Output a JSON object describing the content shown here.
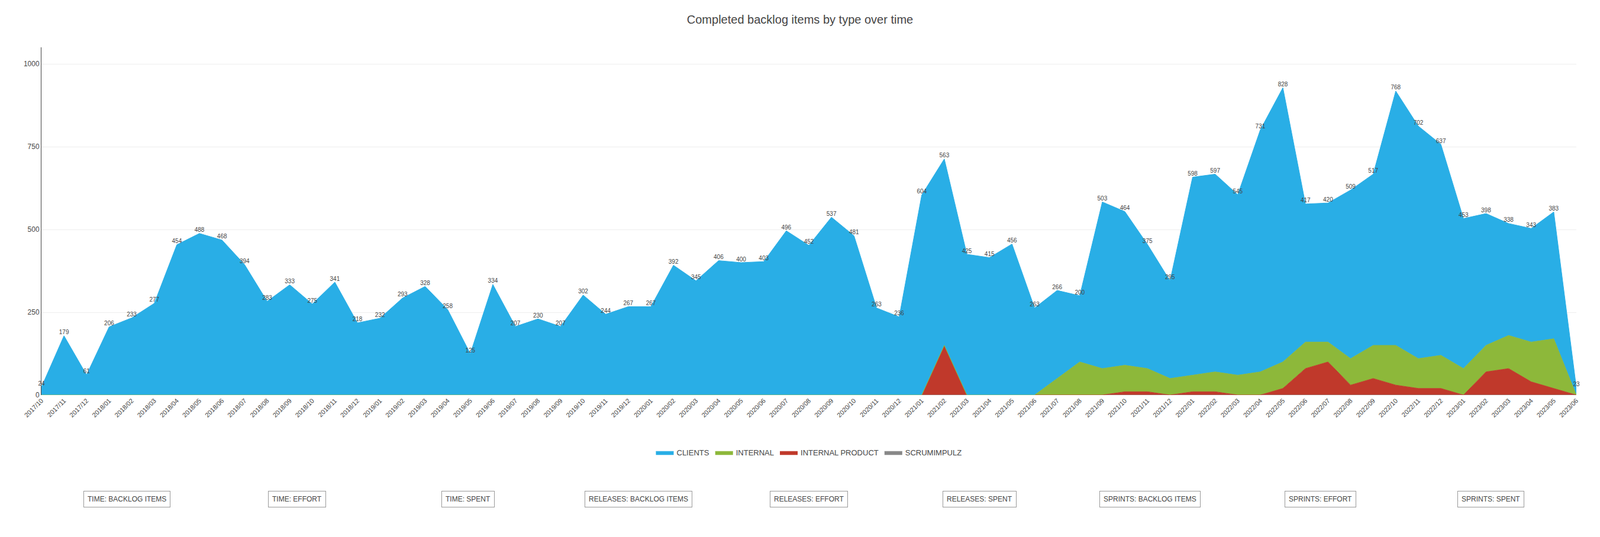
{
  "chart_data": {
    "type": "area",
    "title": "Completed backlog items by type over time",
    "stacked": true,
    "grid": true,
    "legend": "bottom",
    "ylim": [
      0,
      1050
    ],
    "yticks": [
      0,
      250,
      500,
      750,
      1000
    ],
    "categories": [
      "2017/10",
      "2017/11",
      "2017/12",
      "2018/01",
      "2018/02",
      "2018/03",
      "2018/04",
      "2018/05",
      "2018/06",
      "2018/07",
      "2018/08",
      "2018/09",
      "2018/10",
      "2018/11",
      "2018/12",
      "2019/01",
      "2019/02",
      "2019/03",
      "2019/04",
      "2019/05",
      "2019/06",
      "2019/07",
      "2019/08",
      "2019/09",
      "2019/10",
      "2019/11",
      "2019/12",
      "2020/01",
      "2020/02",
      "2020/03",
      "2020/04",
      "2020/05",
      "2020/06",
      "2020/07",
      "2020/08",
      "2020/09",
      "2020/10",
      "2020/11",
      "2020/12",
      "2021/01",
      "2021/02",
      "2021/03",
      "2021/04",
      "2021/05",
      "2021/06",
      "2021/07",
      "2021/08",
      "2021/09",
      "2021/10",
      "2021/11",
      "2021/12",
      "2022/01",
      "2022/02",
      "2022/03",
      "2022/04",
      "2022/05",
      "2022/06",
      "2022/07",
      "2022/08",
      "2022/09",
      "2022/10",
      "2022/11",
      "2022/12",
      "2023/01",
      "2023/02",
      "2023/03",
      "2023/04",
      "2023/05",
      "2023/06"
    ],
    "series": [
      {
        "name": "CLIENTS",
        "color": "#29aee6",
        "data_labels": true,
        "values": [
          24,
          179,
          61,
          206,
          233,
          277,
          454,
          488,
          468,
          394,
          283,
          333,
          275,
          341,
          218,
          232,
          293,
          328,
          258,
          125,
          334,
          207,
          230,
          207,
          302,
          244,
          267,
          267,
          392,
          345,
          406,
          400,
          403,
          496,
          452,
          537,
          481,
          263,
          236,
          604,
          563,
          425,
          415,
          456,
          263,
          266,
          200,
          503,
          464,
          375,
          295,
          598,
          597,
          545,
          731,
          828,
          417,
          420,
          509,
          517,
          768,
          702,
          637,
          453,
          398,
          338,
          343,
          383,
          23
        ]
      },
      {
        "name": "INTERNAL",
        "color": "#8db83a",
        "values": [
          0,
          0,
          0,
          0,
          0,
          0,
          0,
          0,
          0,
          0,
          0,
          0,
          0,
          0,
          0,
          0,
          0,
          0,
          0,
          0,
          0,
          0,
          0,
          0,
          0,
          0,
          0,
          0,
          0,
          0,
          0,
          0,
          0,
          0,
          0,
          0,
          0,
          0,
          0,
          0,
          0,
          0,
          0,
          0,
          0,
          50,
          100,
          80,
          80,
          70,
          50,
          50,
          60,
          60,
          70,
          80,
          80,
          60,
          80,
          100,
          120,
          90,
          100,
          80,
          80,
          100,
          120,
          150,
          0
        ]
      },
      {
        "name": "INTERNAL PRODUCT",
        "color": "#c0392b",
        "values": [
          0,
          0,
          0,
          0,
          0,
          0,
          0,
          0,
          0,
          0,
          0,
          0,
          0,
          0,
          0,
          0,
          0,
          0,
          0,
          0,
          0,
          0,
          0,
          0,
          0,
          0,
          0,
          0,
          0,
          0,
          0,
          0,
          0,
          0,
          0,
          0,
          0,
          0,
          0,
          0,
          150,
          0,
          0,
          0,
          0,
          0,
          0,
          0,
          10,
          10,
          0,
          10,
          10,
          0,
          0,
          20,
          80,
          100,
          30,
          50,
          30,
          20,
          20,
          0,
          70,
          80,
          40,
          20,
          0
        ]
      },
      {
        "name": "SCRUMIMPULZ",
        "color": "#888888",
        "values": [
          0,
          0,
          0,
          0,
          0,
          0,
          0,
          0,
          0,
          0,
          0,
          0,
          0,
          0,
          0,
          0,
          0,
          0,
          0,
          0,
          0,
          0,
          0,
          0,
          0,
          0,
          0,
          0,
          0,
          0,
          0,
          0,
          0,
          0,
          0,
          0,
          0,
          0,
          0,
          0,
          0,
          0,
          0,
          0,
          0,
          0,
          0,
          0,
          0,
          0,
          0,
          0,
          0,
          0,
          0,
          0,
          0,
          0,
          0,
          0,
          0,
          0,
          0,
          0,
          0,
          0,
          0,
          0,
          0
        ]
      }
    ],
    "annotations": [
      "TIME: BACKLOG ITEMS",
      "TIME: EFFORT",
      "TIME: SPENT",
      "RELEASES: BACKLOG ITEMS",
      "RELEASES: EFFORT",
      "RELEASES: SPENT",
      "SPRINTS: BACKLOG ITEMS",
      "SPRINTS: EFFORT",
      "SPRINTS: SPENT"
    ]
  }
}
